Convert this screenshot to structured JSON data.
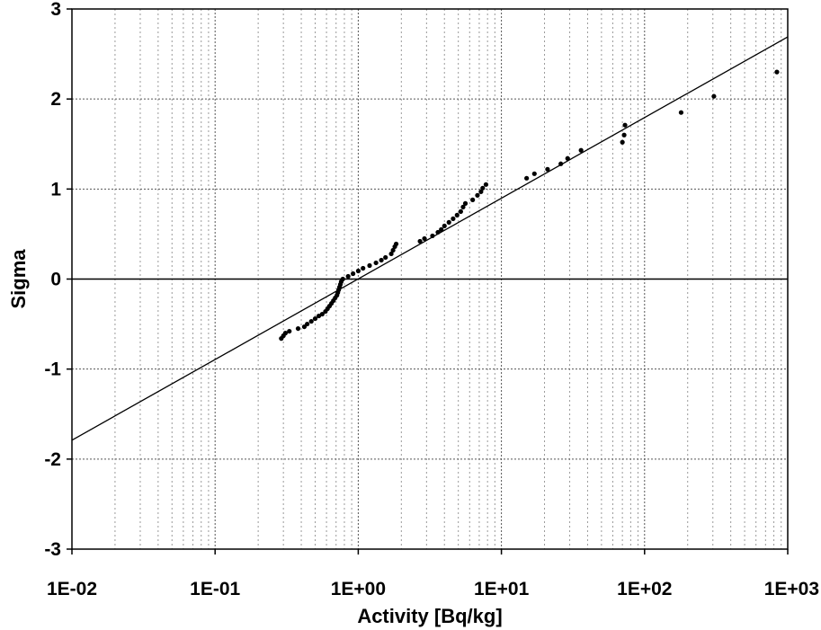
{
  "chart_data": {
    "type": "scatter",
    "title": "",
    "xlabel": "Activity [Bq/kg]",
    "ylabel": "Sigma",
    "x_scale": "log",
    "xlim": [
      0.01,
      1000
    ],
    "ylim": [
      -3,
      3
    ],
    "x_tick_labels": [
      "1E-02",
      "1E-01",
      "1E+00",
      "1E+01",
      "1E+02",
      "1E+03"
    ],
    "x_tick_values": [
      0.01,
      0.1,
      1,
      10,
      100,
      1000
    ],
    "y_tick_labels": [
      "3",
      "2",
      "1",
      "0",
      "-1",
      "-2",
      "-3"
    ],
    "y_tick_values": [
      3,
      2,
      1,
      0,
      -1,
      -2,
      -3
    ],
    "grid": true,
    "colors": {
      "points": "#000000",
      "fit_line": "#000000",
      "grid": "#9a9a9a"
    },
    "series": [
      {
        "type": "scatter",
        "points": [
          [
            0.29,
            -0.66
          ],
          [
            0.3,
            -0.63
          ],
          [
            0.31,
            -0.6
          ],
          [
            0.33,
            -0.58
          ],
          [
            0.38,
            -0.55
          ],
          [
            0.42,
            -0.53
          ],
          [
            0.44,
            -0.5
          ],
          [
            0.47,
            -0.47
          ],
          [
            0.5,
            -0.44
          ],
          [
            0.53,
            -0.41
          ],
          [
            0.56,
            -0.39
          ],
          [
            0.59,
            -0.36
          ],
          [
            0.61,
            -0.33
          ],
          [
            0.63,
            -0.3
          ],
          [
            0.65,
            -0.27
          ],
          [
            0.67,
            -0.24
          ],
          [
            0.69,
            -0.21
          ],
          [
            0.71,
            -0.18
          ],
          [
            0.72,
            -0.15
          ],
          [
            0.73,
            -0.12
          ],
          [
            0.74,
            -0.09
          ],
          [
            0.75,
            -0.06
          ],
          [
            0.76,
            -0.03
          ],
          [
            0.78,
            0.0
          ],
          [
            0.85,
            0.03
          ],
          [
            0.92,
            0.06
          ],
          [
            1.0,
            0.09
          ],
          [
            1.08,
            0.12
          ],
          [
            1.2,
            0.15
          ],
          [
            1.33,
            0.18
          ],
          [
            1.45,
            0.21
          ],
          [
            1.55,
            0.24
          ],
          [
            1.7,
            0.28
          ],
          [
            1.75,
            0.32
          ],
          [
            1.8,
            0.36
          ],
          [
            1.84,
            0.39
          ],
          [
            2.7,
            0.42
          ],
          [
            2.9,
            0.45
          ],
          [
            3.3,
            0.48
          ],
          [
            3.6,
            0.52
          ],
          [
            3.8,
            0.55
          ],
          [
            4.0,
            0.59
          ],
          [
            4.3,
            0.63
          ],
          [
            4.6,
            0.67
          ],
          [
            4.9,
            0.71
          ],
          [
            5.2,
            0.75
          ],
          [
            5.4,
            0.8
          ],
          [
            5.6,
            0.84
          ],
          [
            6.3,
            0.88
          ],
          [
            6.8,
            0.93
          ],
          [
            7.2,
            0.97
          ],
          [
            7.4,
            1.01
          ],
          [
            7.8,
            1.05
          ],
          [
            15,
            1.12
          ],
          [
            17,
            1.17
          ],
          [
            21,
            1.22
          ],
          [
            26,
            1.28
          ],
          [
            29,
            1.34
          ],
          [
            36,
            1.43
          ],
          [
            70,
            1.52
          ],
          [
            72,
            1.6
          ],
          [
            73,
            1.71
          ],
          [
            180,
            1.85
          ],
          [
            305,
            2.03
          ],
          [
            840,
            2.3
          ]
        ]
      },
      {
        "type": "line",
        "name": "",
        "x": [
          0.01,
          1000
        ],
        "y": [
          -1.79,
          2.69
        ]
      }
    ]
  }
}
